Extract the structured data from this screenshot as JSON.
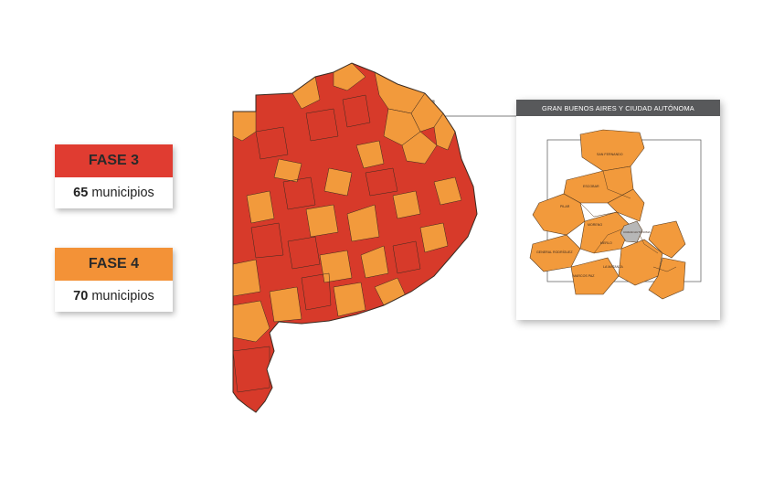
{
  "legend": {
    "fase3": {
      "label": "FASE 3",
      "count": "65",
      "unit": "municipios",
      "color": "#e03c31"
    },
    "fase4": {
      "label": "FASE 4",
      "count": "70",
      "unit": "municipios",
      "color": "#f39237"
    }
  },
  "inset": {
    "title": "GRAN BUENOS AIRES Y CIUDAD AUTÓNOMA",
    "labels": {
      "san_fernando": "SAN FERNANDO",
      "escobar": "ESCOBAR",
      "pilar": "PILAR",
      "moreno": "MORENO",
      "general_rodriguez": "GENERAL RODRÍGUEZ",
      "marcos_paz": "MARCOS PAZ",
      "la_matanza": "LA MATANZA",
      "merlo": "MERLO",
      "caba": "CIUDAD AUTÓNOMA"
    }
  },
  "colors": {
    "fase3": "#d73a2a",
    "fase4": "#f29a3c",
    "caba": "#b7b7b7",
    "border": "#3a2a20"
  }
}
